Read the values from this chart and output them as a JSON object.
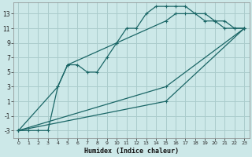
{
  "xlabel": "Humidex (Indice chaleur)",
  "bg_color": "#cce8e8",
  "grid_color": "#aacccc",
  "line_color": "#1a6666",
  "xlim": [
    -0.5,
    23.5
  ],
  "ylim": [
    -4.0,
    14.5
  ],
  "xticks": [
    0,
    1,
    2,
    3,
    4,
    5,
    6,
    7,
    8,
    9,
    10,
    11,
    12,
    13,
    14,
    15,
    16,
    17,
    18,
    19,
    20,
    21,
    22,
    23
  ],
  "yticks": [
    -3,
    -1,
    1,
    3,
    5,
    7,
    9,
    11,
    13
  ],
  "series1_x": [
    0,
    1,
    2,
    3,
    4,
    5,
    6,
    7,
    8,
    9,
    10,
    11,
    12,
    13,
    14,
    15,
    16,
    17,
    18,
    19,
    20,
    21,
    22,
    23
  ],
  "series1_y": [
    -3,
    -3,
    -3,
    -3,
    3,
    6,
    6,
    5,
    5,
    7,
    9,
    11,
    11,
    13,
    14,
    14,
    14,
    14,
    13,
    12,
    12,
    11,
    11,
    11
  ],
  "series2_x": [
    0,
    4,
    5,
    10,
    15,
    16,
    17,
    19,
    20,
    21,
    22,
    23
  ],
  "series2_y": [
    -3,
    3,
    6,
    9,
    12,
    13,
    13,
    13,
    12,
    12,
    11,
    11
  ],
  "series3_x": [
    0,
    15,
    23
  ],
  "series3_y": [
    -3,
    3,
    11
  ],
  "series4_x": [
    0,
    15,
    23
  ],
  "series4_y": [
    -3,
    1,
    11
  ]
}
